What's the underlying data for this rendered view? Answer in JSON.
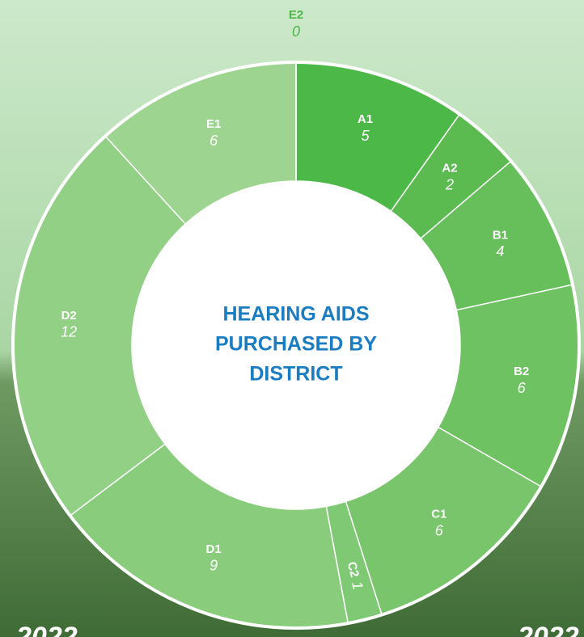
{
  "chart_data": {
    "type": "donut",
    "title": [
      "HEARING AIDS",
      "PURCHASED BY",
      "DISTRICT"
    ],
    "categories": [
      "A1",
      "A2",
      "B1",
      "B2",
      "C1",
      "C2",
      "D1",
      "D2",
      "E1",
      "E2"
    ],
    "values": [
      5,
      2,
      4,
      6,
      6,
      1,
      9,
      12,
      6,
      0
    ],
    "colors": [
      "#4cb847",
      "#5bbb50",
      "#66bf5a",
      "#6ec262",
      "#78c56b",
      "#80c974",
      "#89cc7c",
      "#92d086",
      "#9dd490",
      "#a6d89a"
    ],
    "background_texts": [
      "2022",
      "2022"
    ]
  }
}
